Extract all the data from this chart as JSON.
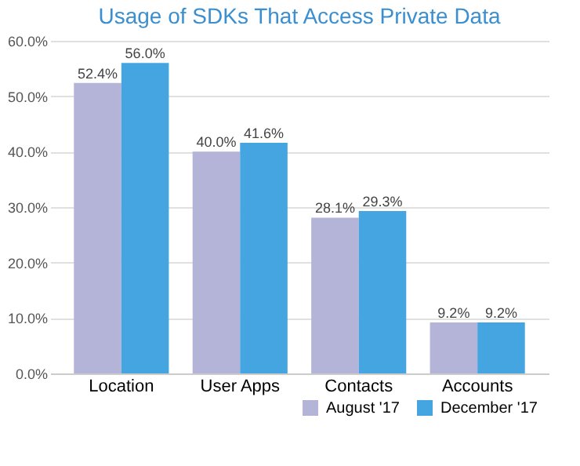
{
  "chart_data": {
    "type": "bar",
    "title": "Usage of SDKs That Access Private Data",
    "categories": [
      "Location",
      "User Apps",
      "Contacts",
      "Accounts"
    ],
    "series": [
      {
        "name": "August '17",
        "color": "#b4b4d9",
        "values": [
          52.4,
          40.0,
          28.1,
          9.2
        ]
      },
      {
        "name": "December '17",
        "color": "#45a5e0",
        "values": [
          56.0,
          41.6,
          29.3,
          9.2
        ]
      }
    ],
    "value_labels": [
      [
        "52.4%",
        "40.0%",
        "28.1%",
        "9.2%"
      ],
      [
        "56.0%",
        "41.6%",
        "29.3%",
        "9.2%"
      ]
    ],
    "ylim": [
      0,
      60
    ],
    "yticks": [
      {
        "value": 0,
        "label": "0.0%"
      },
      {
        "value": 10,
        "label": "10.0%"
      },
      {
        "value": 20,
        "label": "20.0%"
      },
      {
        "value": 30,
        "label": "30.0%"
      },
      {
        "value": 40,
        "label": "40.0%"
      },
      {
        "value": 50,
        "label": "50.0%"
      },
      {
        "value": 60,
        "label": "60.0%"
      }
    ],
    "grid": "y",
    "legend": "bottom right"
  }
}
